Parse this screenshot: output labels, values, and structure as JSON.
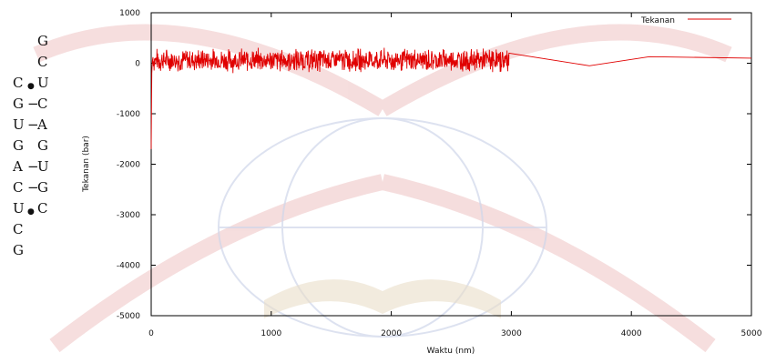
{
  "sequence": {
    "rows": [
      {
        "left": "",
        "bond": "",
        "right": "G"
      },
      {
        "left": "",
        "bond": "",
        "right": "C"
      },
      {
        "left": "C",
        "bond": "●",
        "right": "U"
      },
      {
        "left": "G",
        "bond": "−",
        "right": "C"
      },
      {
        "left": "U",
        "bond": "−",
        "right": "A"
      },
      {
        "left": "G",
        "bond": "",
        "right": "G"
      },
      {
        "left": "A",
        "bond": "−",
        "right": "U"
      },
      {
        "left": "C",
        "bond": "−",
        "right": "G"
      },
      {
        "left": "U",
        "bond": "●",
        "right": "C"
      },
      {
        "left": "C",
        "bond": "",
        "right": ""
      },
      {
        "left": "G",
        "bond": "",
        "right": ""
      }
    ]
  },
  "chart_data": {
    "type": "line",
    "xlabel": "Waktu (nm)",
    "ylabel": "Tekanan (bar)",
    "xlim": [
      0,
      5000
    ],
    "ylim": [
      -5000,
      1000
    ],
    "xticks": [
      0,
      1000,
      2000,
      3000,
      4000,
      5000
    ],
    "yticks": [
      1000,
      0,
      -1000,
      -2000,
      -3000,
      -4000,
      -5000
    ],
    "grid": false,
    "legend_position": "top-right",
    "series": [
      {
        "name": "Tekanan",
        "color": "#e00000",
        "initial_points": {
          "x": [
            0,
            5,
            10,
            15
          ],
          "y": [
            -1700,
            -200,
            50,
            120
          ]
        },
        "noisy_segment": {
          "x_start": 15,
          "x_end": 2980,
          "mean": 60,
          "amplitude": 200
        },
        "smooth_points": {
          "x": [
            2980,
            3650,
            4150,
            5000
          ],
          "y": [
            200,
            -50,
            130,
            100
          ]
        }
      }
    ]
  },
  "watermark": {
    "color": "#e8b8b8"
  }
}
